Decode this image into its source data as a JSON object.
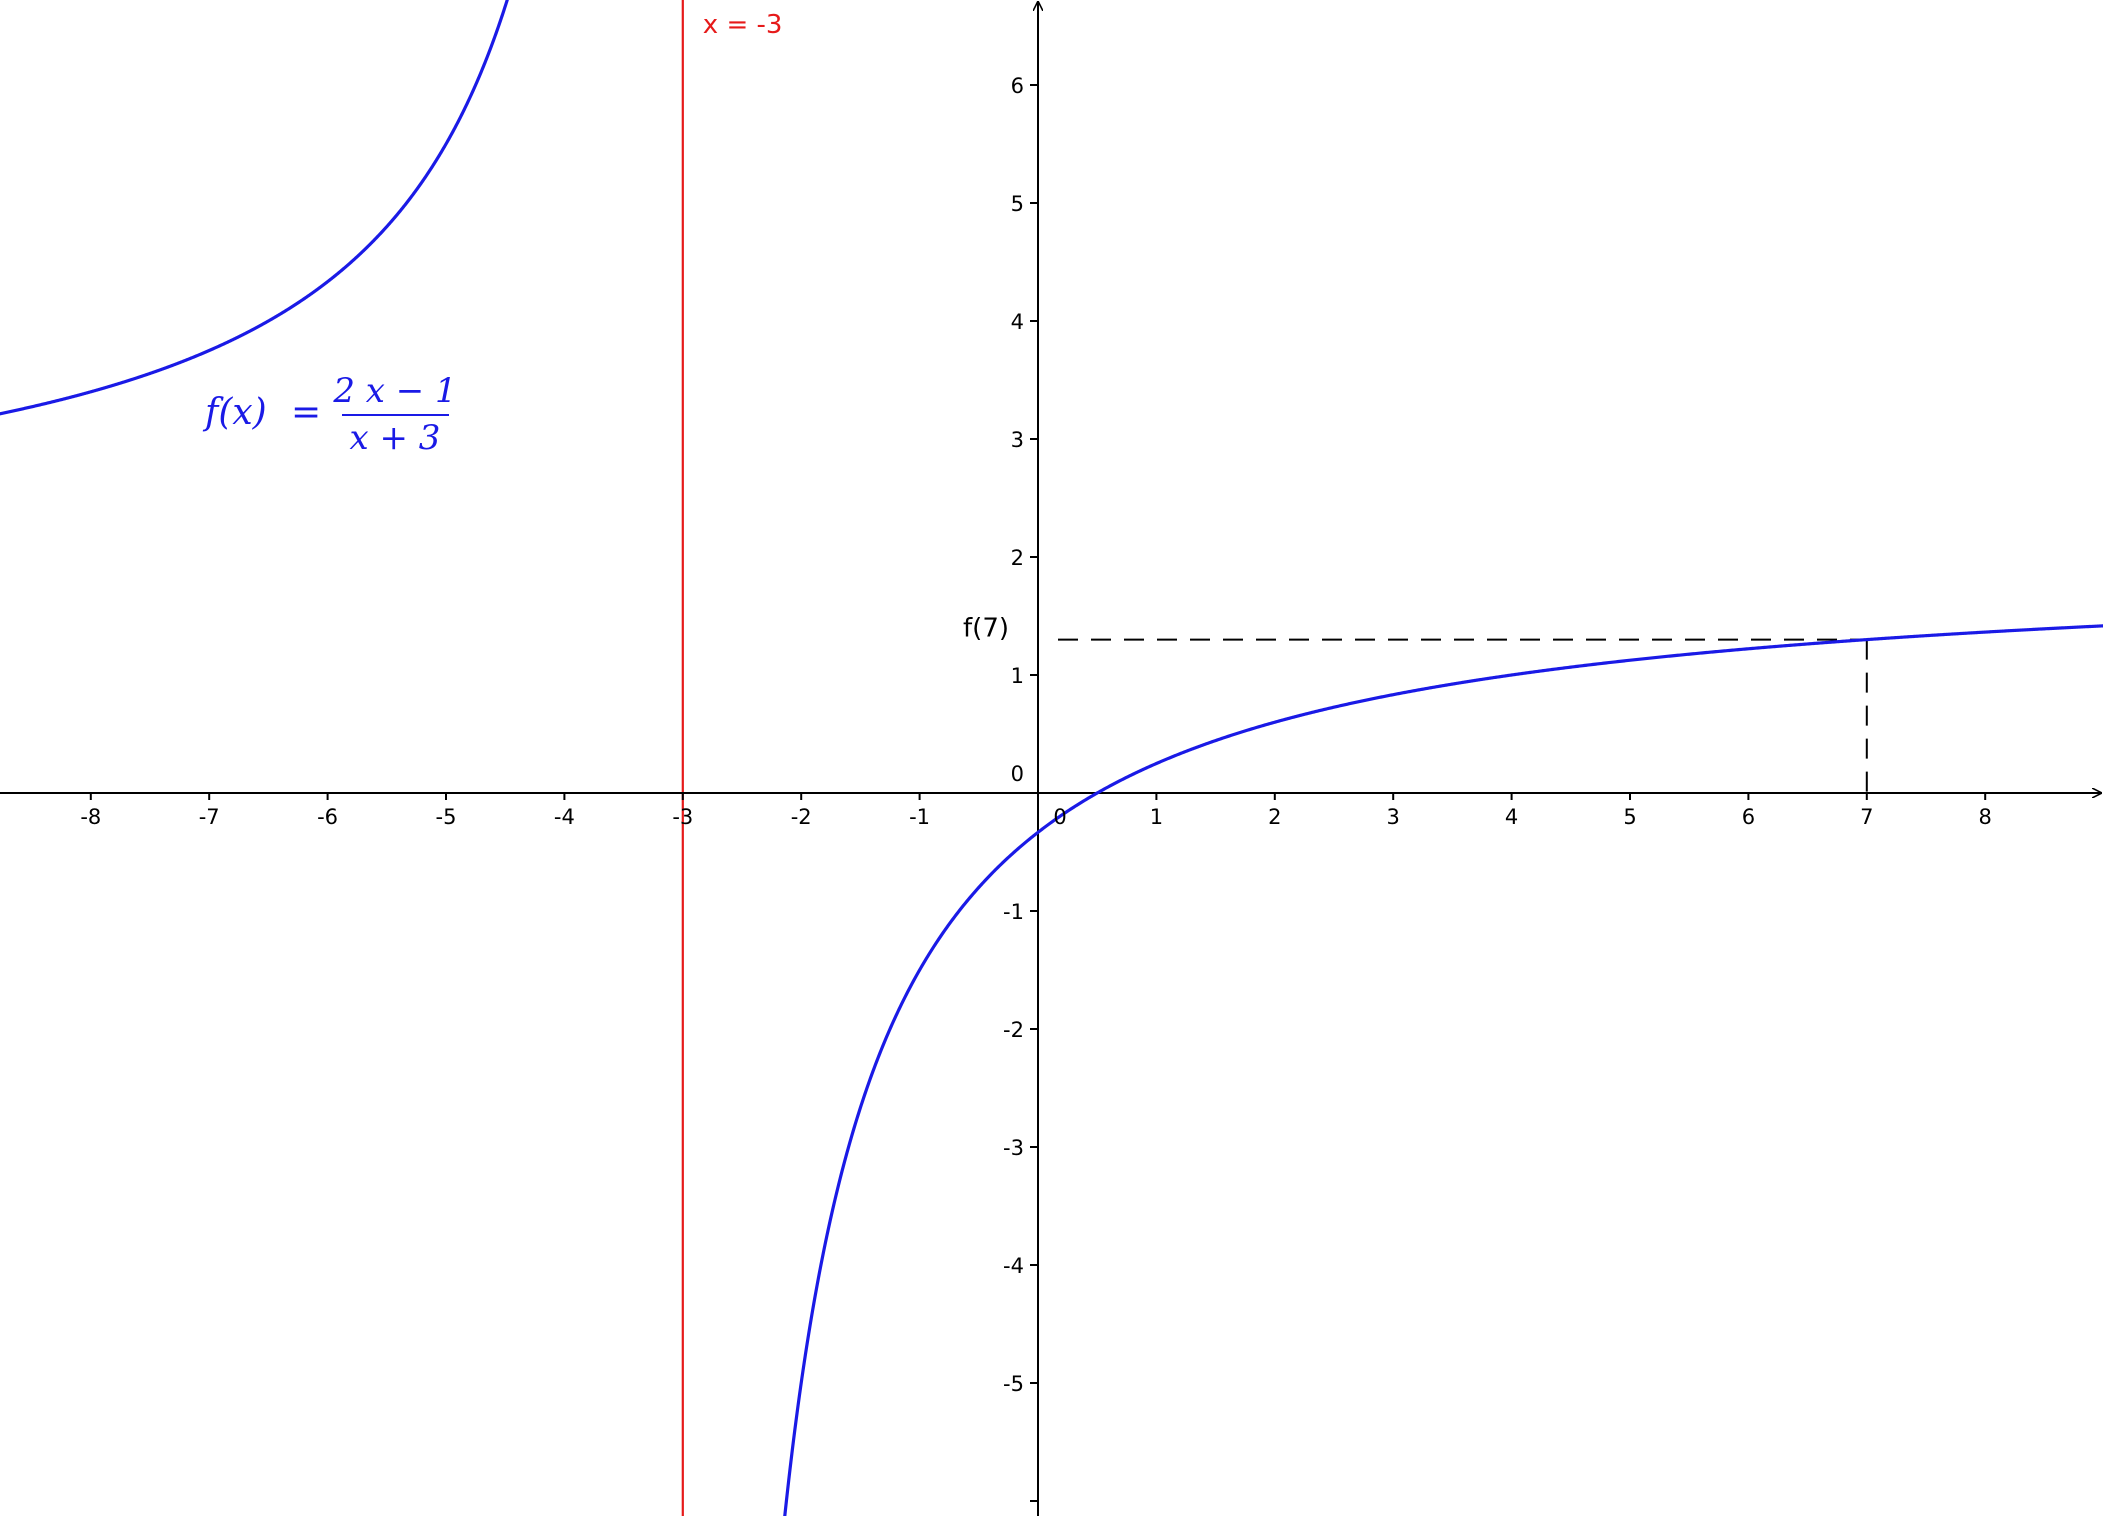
{
  "chart_data": {
    "type": "line",
    "function_label": {
      "lhs": "f(x)",
      "eq": "=",
      "numerator": "2 x − 1",
      "denominator": "x + 3"
    },
    "function": {
      "a": 2,
      "b": -1,
      "c": 1,
      "d": 3
    },
    "xlim": [
      -8.8,
      9.0
    ],
    "ylim": [
      -6.2,
      6.7
    ],
    "x_ticks": [
      -8,
      -7,
      -6,
      -5,
      -4,
      -3,
      -2,
      -1,
      1,
      2,
      3,
      4,
      5,
      6,
      7,
      8
    ],
    "x_tick_labels": [
      "-8",
      "-7",
      "-6",
      "-5",
      "-4",
      "-3",
      "-2",
      "-1",
      "1",
      "2",
      "3",
      "4",
      "5",
      "6",
      "7",
      "8"
    ],
    "y_ticks": [
      -5,
      -4,
      -3,
      -2,
      -1,
      1,
      2,
      3,
      4,
      5,
      6
    ],
    "y_tick_labels": [
      "-5",
      "-4",
      "-3",
      "-2",
      "-1",
      "1",
      "2",
      "3",
      "4",
      "5",
      "6"
    ],
    "origin_label": "0",
    "vertical_asymptote": {
      "x": -3,
      "label": "x = -3",
      "color": "#e61a1a"
    },
    "reference_point": {
      "x": 7,
      "y": 1.3,
      "label": "f(7)"
    },
    "curve_color": "#1a1ae6",
    "grid": false
  }
}
